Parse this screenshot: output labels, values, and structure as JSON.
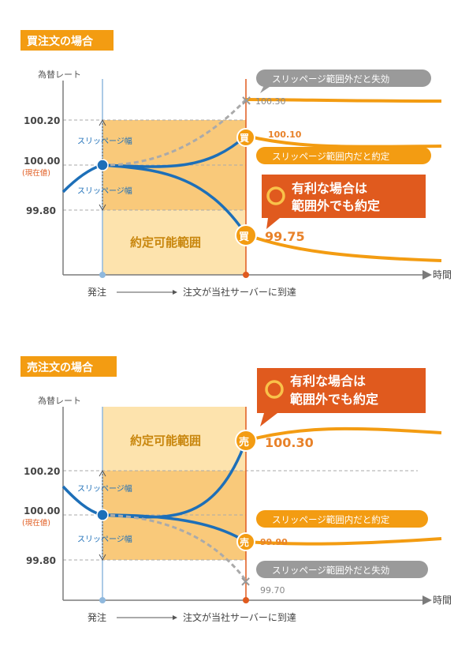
{
  "colors": {
    "orange": "#f39c12",
    "orange_dark": "#e8822a",
    "red_box": "#e05a1e",
    "blue": "#1d6fb8",
    "gray": "#9a9a9a",
    "zone_light": "#fde3ad",
    "zone_dark": "#f9c97a",
    "axis": "#7b7b7b",
    "label_blue": "#1d6fb8",
    "label_red": "#e05a1e"
  },
  "buy": {
    "title": "買注文の場合",
    "y_axis_label": "為替レート",
    "x_axis_label": "時間",
    "ticks": {
      "upper": "100.20",
      "center": "100.00",
      "center_note": "(現在値)",
      "lower": "99.80"
    },
    "slippage_label_upper": "スリッページ幅",
    "slippage_label_lower": "スリッページ幅",
    "zone_label": "約定可能範囲",
    "order_label": "発注",
    "arrival_label": "注文が当社サーバーに到達",
    "fail_box": "スリッページ範囲外だと失効",
    "fail_price": "100.30",
    "ok_box": "スリッページ範囲内だと約定",
    "ok_price": "100.10",
    "ok_badge": "買",
    "fav_callout_line1": "有利な場合は",
    "fav_callout_line2": "範囲外でも約定",
    "fav_badge": "買",
    "fav_price": "99.75"
  },
  "sell": {
    "title": "売注文の場合",
    "y_axis_label": "為替レート",
    "x_axis_label": "時間",
    "ticks": {
      "upper": "100.20",
      "center": "100.00",
      "center_note": "(現在値)",
      "lower": "99.80"
    },
    "slippage_label_upper": "スリッページ幅",
    "slippage_label_lower": "スリッページ幅",
    "zone_label": "約定可能範囲",
    "order_label": "発注",
    "arrival_label": "注文が当社サーバーに到達",
    "fav_callout_line1": "有利な場合は",
    "fav_callout_line2": "範囲外でも約定",
    "fav_badge": "売",
    "fav_price": "100.30",
    "ok_box": "スリッページ範囲内だと約定",
    "ok_badge": "売",
    "ok_price": "99.90",
    "fail_box": "スリッページ範囲外だと失効",
    "fail_price": "99.70"
  }
}
